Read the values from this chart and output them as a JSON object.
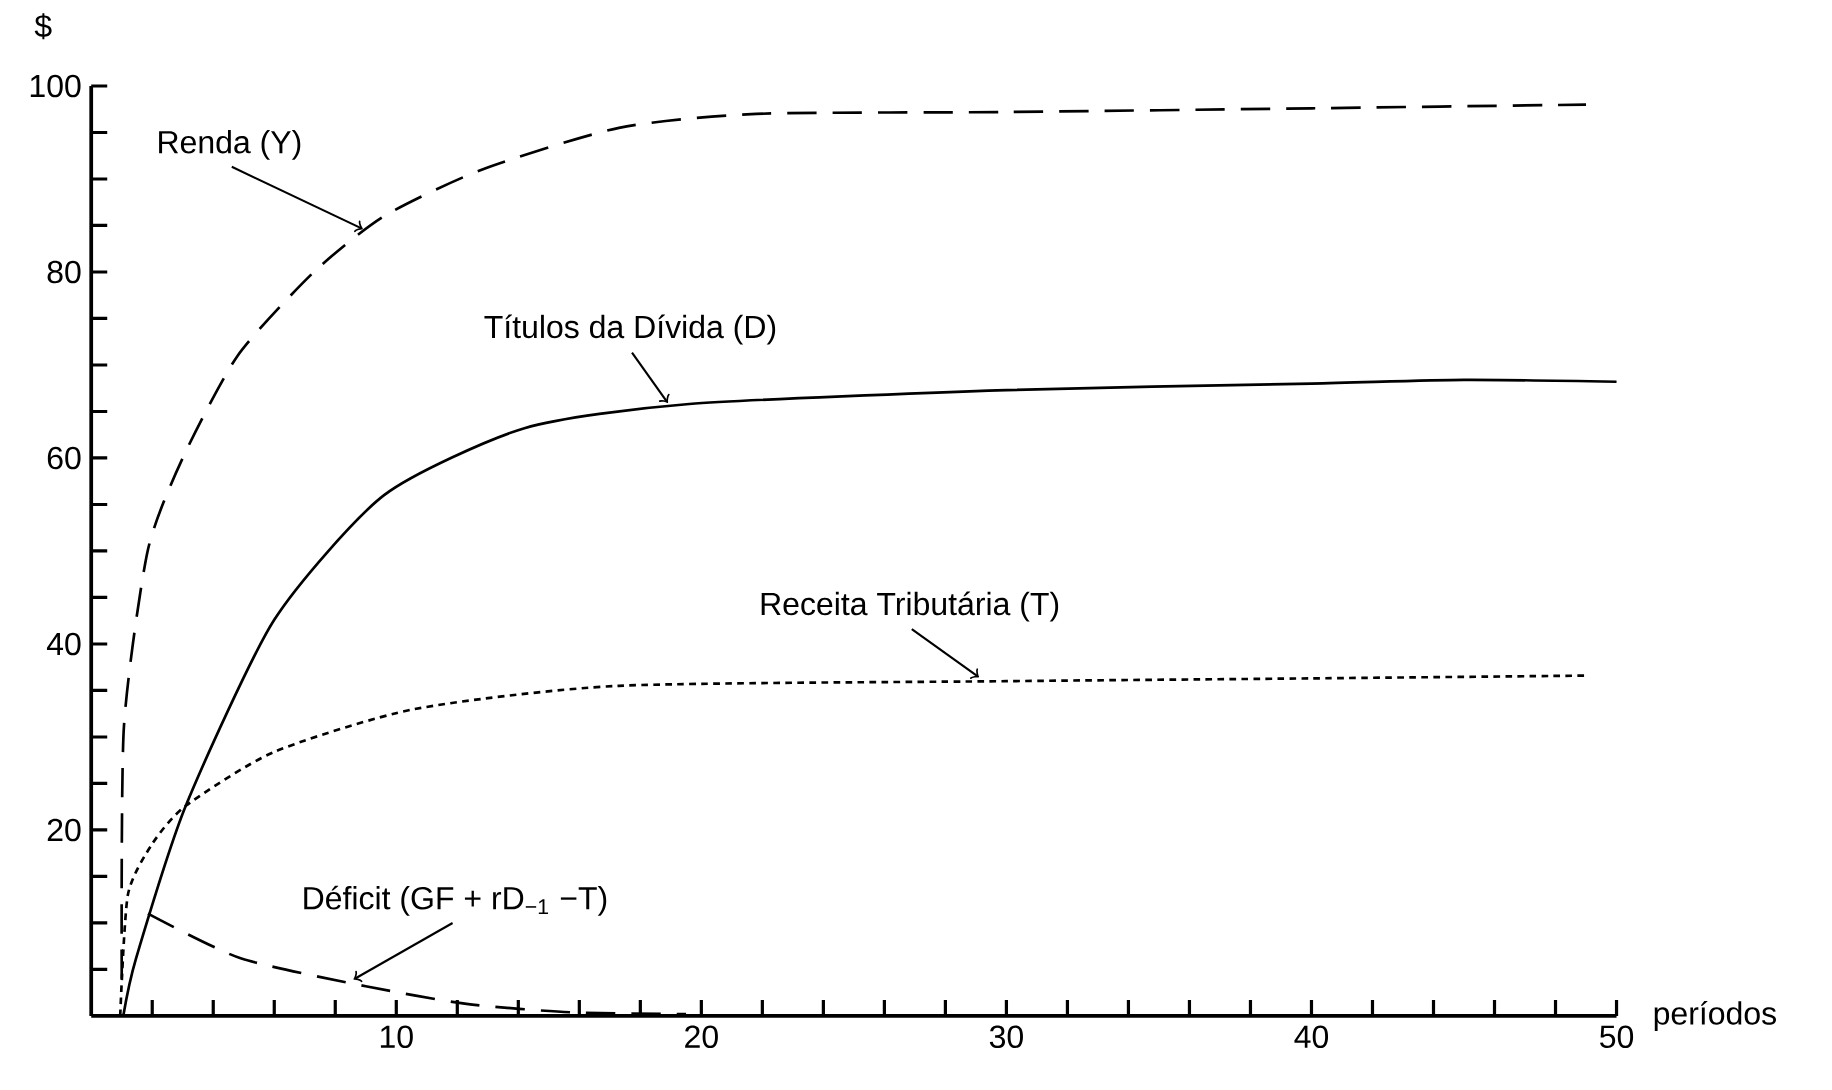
{
  "chart_data": {
    "type": "line",
    "xlabel": "períodos",
    "ylabel": "$",
    "xlim": [
      0,
      50
    ],
    "ylim": [
      0,
      100
    ],
    "xticks": [
      {
        "value": 2,
        "label": null
      },
      {
        "value": 4,
        "label": null
      },
      {
        "value": 6,
        "label": null
      },
      {
        "value": 8,
        "label": null
      },
      10,
      {
        "value": 12,
        "label": null
      },
      {
        "value": 14,
        "label": null
      },
      {
        "value": 16,
        "label": null
      },
      {
        "value": 18,
        "label": null
      },
      20,
      {
        "value": 22,
        "label": null
      },
      {
        "value": 24,
        "label": null
      },
      {
        "value": 26,
        "label": null
      },
      {
        "value": 28,
        "label": null
      },
      30,
      {
        "value": 32,
        "label": null
      },
      {
        "value": 34,
        "label": null
      },
      {
        "value": 36,
        "label": null
      },
      {
        "value": 38,
        "label": null
      },
      40,
      {
        "value": 42,
        "label": null
      },
      {
        "value": 44,
        "label": null
      },
      {
        "value": 46,
        "label": null
      },
      {
        "value": 48,
        "label": null
      },
      50
    ],
    "yticks": [
      {
        "value": 5,
        "label": null
      },
      {
        "value": 10,
        "label": null
      },
      {
        "value": 15,
        "label": null
      },
      20,
      {
        "value": 25,
        "label": null
      },
      {
        "value": 30,
        "label": null
      },
      {
        "value": 35,
        "label": null
      },
      40,
      {
        "value": 45,
        "label": null
      },
      {
        "value": 50,
        "label": null
      },
      {
        "value": 55,
        "label": null
      },
      60,
      {
        "value": 65,
        "label": null
      },
      {
        "value": 70,
        "label": null
      },
      {
        "value": 75,
        "label": null
      },
      80,
      {
        "value": 85,
        "label": null
      },
      {
        "value": 90,
        "label": null
      },
      {
        "value": 95,
        "label": null
      },
      100
    ],
    "series": [
      {
        "color": "#000000",
        "line_style": "dashed",
        "x": [
          1.0,
          1.07,
          1.85,
          3,
          4.8,
          7.3,
          9.6,
          12.8,
          17.3,
          21.8,
          30,
          40,
          49
        ],
        "values": [
          4,
          31,
          50,
          60,
          71,
          80,
          86,
          91,
          95.5,
          97,
          97.2,
          97.6,
          98
        ]
      },
      {
        "color": "#000000",
        "line_style": "solid",
        "x": [
          1.05,
          1.47,
          3.1,
          6,
          9.6,
          14.2,
          19.6,
          30,
          40,
          45,
          50
        ],
        "values": [
          0,
          6.2,
          22.6,
          42.6,
          56,
          63.2,
          65.8,
          67.3,
          68,
          68.4,
          68.2
        ]
      },
      {
        "color": "#000000",
        "line_style": "dotted",
        "x": [
          0.95,
          1.2,
          2,
          3.1,
          6,
          10.6,
          17.3,
          30,
          40,
          49
        ],
        "values": [
          0,
          13,
          18.5,
          22.6,
          28.4,
          33,
          35.5,
          36,
          36.3,
          36.6
        ]
      },
      {
        "color": "#000000",
        "line_style": "dashed",
        "x": [
          1.86,
          4.9,
          9,
          12.3,
          15.7,
          19.5
        ],
        "values": [
          11,
          6.2,
          3.2,
          1.3,
          0.4,
          0.2
        ]
      }
    ],
    "annotations": [
      {
        "text": "Renda (Y)",
        "x": 8.9,
        "y": 84.2
      },
      {
        "text": "Títulos da Dívida (D)",
        "x": 18.9,
        "y": 65.5
      },
      {
        "text": "Receita Tributária (T)",
        "x": 29.1,
        "y": 36
      },
      {
        "text": "Déficit (GF + rD$_{−1}$ −T)",
        "x": 8.6,
        "y": 3.5
      }
    ]
  }
}
